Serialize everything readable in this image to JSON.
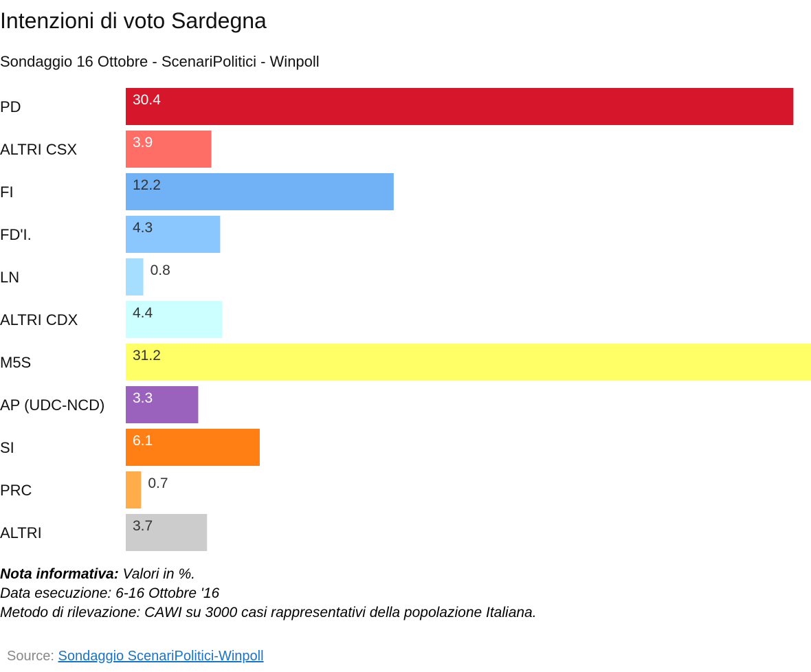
{
  "chart_data": {
    "type": "bar",
    "orientation": "horizontal",
    "title": "Intenzioni di voto Sardegna",
    "subtitle": "Sondaggio 16 Ottobre - ScenariPolitici - Winpoll",
    "xlabel": "",
    "ylabel": "",
    "xlim": [
      0,
      31.2
    ],
    "grid": false,
    "legend": "none",
    "categories": [
      "PD",
      "ALTRI CSX",
      "FI",
      "FD'I.",
      "LN",
      "ALTRI CDX",
      "M5S",
      "AP (UDC-NCD)",
      "SI",
      "PRC",
      "ALTRI"
    ],
    "values": [
      30.4,
      3.9,
      12.2,
      4.3,
      0.8,
      4.4,
      31.2,
      3.3,
      6.1,
      0.7,
      3.7
    ],
    "value_labels": [
      "30.4",
      "3.9",
      "12.2",
      "4.3",
      "0.8",
      "4.4",
      "31.2",
      "3.3",
      "6.1",
      "0.7",
      "3.7"
    ],
    "colors": [
      "#d6172b",
      "#ff6e66",
      "#70b2f5",
      "#8ac6ff",
      "#a5deff",
      "#ccffff",
      "#ffff66",
      "#9b62bd",
      "#ff7f15",
      "#ffad4a",
      "#cccccc"
    ],
    "label_colors": [
      "#ffffff",
      "#ffffff",
      "#333333",
      "#333333",
      "#333333",
      "#333333",
      "#333333",
      "#ffffff",
      "#ffffff",
      "#333333",
      "#333333"
    ]
  },
  "notes": {
    "heading": "Nota informativa:",
    "line1": " Valori in %.",
    "line2": "Data esecuzione: 6-16  Ottobre '16",
    "line3": "Metodo di rilevazione: CAWI su 3000 casi rappresentativi della popolazione Italiana."
  },
  "source": {
    "prefix": "Source: ",
    "link_text": "Sondaggio ScenariPolitici-Winpoll"
  }
}
